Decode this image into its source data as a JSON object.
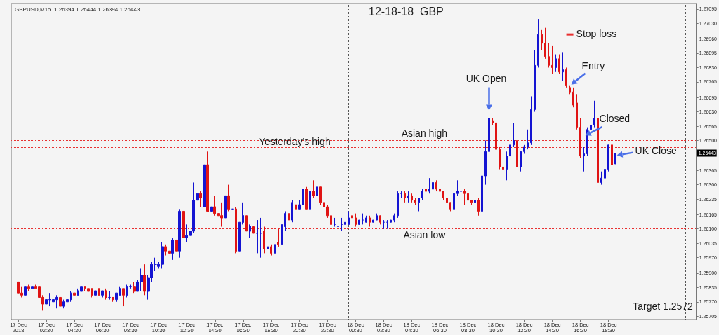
{
  "chart_data": {
    "type": "candlestick",
    "title": "12-18-18  GBP",
    "subtitle": "GBPUSD,M15  1.26394 1.26444 1.26394 1.26443",
    "colors": [
      "#e01414",
      "#e01414",
      "#1414d2",
      "#e01414",
      "#1414d2",
      "#e01414",
      "#e01414",
      "#e01414",
      "#1414d2",
      "#1414d2",
      "#1414d2",
      "#1414d2",
      "#e01414",
      "#1414d2",
      "#1414d2",
      "#1414d2",
      "#e01414",
      "#1414d2",
      "#1414d2",
      "#e01414",
      "#e01414",
      "#e01414",
      "#1414d2",
      "#e01414",
      "#1414d2",
      "#e01414",
      "#1414d2",
      "#e01414",
      "#1414d2",
      "#1414d2",
      "#e01414",
      "#1414d2",
      "#1414d2",
      "#e01414",
      "#1414d2",
      "#1414d2",
      "#e01414",
      "#1414d2",
      "#1414d2",
      "#1414d2",
      "#1414d2",
      "#1414d2",
      "#e01414",
      "#e01414",
      "#1414d2",
      "#e01414",
      "#1414d2",
      "#e01414",
      "#1414d2",
      "#1414d2",
      "#1414d2",
      "#1414d2",
      "#e01414",
      "#1414d2",
      "#e01414",
      "#1414d2",
      "#e01414",
      "#e01414",
      "#e01414",
      "#1414d2",
      "#e01414",
      "#1414d2",
      "#e01414",
      "#1414d2",
      "#1414d2",
      "#e01414",
      "#1414d2",
      "#e01414",
      "#1414d2",
      "#1414d2",
      "#e01414",
      "#1414d2",
      "#e01414",
      "#1414d2",
      "#e01414",
      "#1414d2",
      "#1414d2",
      "#e01414",
      "#1414d2",
      "#e01414",
      "#1414d2",
      "#1414d2",
      "#e01414",
      "#1414d2",
      "#e01414",
      "#1414d2",
      "#e01414",
      "#e01414",
      "#e01414",
      "#e01414",
      "#1414d2",
      "#1414d2",
      "#1414d2",
      "#1414d2",
      "#1414d2",
      "#e01414",
      "#e01414",
      "#1414d2",
      "#1414d2",
      "#1414d2",
      "#e01414",
      "#1414d2",
      "#1414d2",
      "#e01414",
      "#1414d2",
      "#1414d2",
      "#1414d2",
      "#1414d2",
      "#1414d2",
      "#1414d2",
      "#e01414",
      "#1414d2",
      "#e01414",
      "#e01414",
      "#1414d2",
      "#1414d2",
      "#e01414",
      "#1414d2",
      "#1414d2",
      "#e01414",
      "#e01414",
      "#e01414",
      "#e01414",
      "#e01414",
      "#1414d2",
      "#1414d2",
      "#1414d2",
      "#e01414",
      "#e01414",
      "#e01414",
      "#1414d2",
      "#e01414",
      "#1414d2",
      "#1414d2",
      "#1414d2",
      "#e01414",
      "#e01414",
      "#e01414",
      "#e01414",
      "#1414d2",
      "#1414d2",
      "#1414d2",
      "#e01414",
      "#1414d2",
      "#1414d2",
      "#1414d2",
      "#1414d2",
      "#1414d2",
      "#1414d2",
      "#e01414",
      "#e01414",
      "#e01414",
      "#e01414",
      "#1414d2",
      "#e01414",
      "#1414d2",
      "#e01414",
      "#e01414",
      "#e01414",
      "#e01414",
      "#e01414",
      "#1414d2",
      "#1414d2",
      "#1414d2",
      "#1414d2",
      "#e01414",
      "#1414d2",
      "#1414d2",
      "#1414d2",
      "#e01414",
      "#1414d2"
    ],
    "x": [
      "2018-12-17T00:30",
      "2018-12-17T00:45",
      "2018-12-17T01:00",
      "2018-12-17T01:15",
      "2018-12-17T01:30",
      "2018-12-17T01:45",
      "2018-12-17T02:00",
      "2018-12-17T02:15",
      "2018-12-17T02:30",
      "2018-12-17T02:45",
      "2018-12-17T03:00",
      "2018-12-17T03:15",
      "2018-12-17T03:30",
      "2018-12-17T03:45",
      "2018-12-17T04:00",
      "2018-12-17T04:15",
      "2018-12-17T04:30",
      "2018-12-17T04:45",
      "2018-12-17T05:00",
      "2018-12-17T05:15",
      "2018-12-17T05:30",
      "2018-12-17T05:45",
      "2018-12-17T06:00",
      "2018-12-17T06:15",
      "2018-12-17T06:30",
      "2018-12-17T06:45",
      "2018-12-17T07:00",
      "2018-12-17T07:15",
      "2018-12-17T07:30",
      "2018-12-17T07:45",
      "2018-12-17T08:00",
      "2018-12-17T08:15",
      "2018-12-17T08:30",
      "2018-12-17T08:45",
      "2018-12-17T09:00",
      "2018-12-17T09:15",
      "2018-12-17T09:30",
      "2018-12-17T09:45",
      "2018-12-17T10:00",
      "2018-12-17T10:15",
      "2018-12-17T10:30",
      "2018-12-17T10:45",
      "2018-12-17T11:00",
      "2018-12-17T11:15",
      "2018-12-17T11:30",
      "2018-12-17T11:45",
      "2018-12-17T12:00",
      "2018-12-17T12:15",
      "2018-12-17T12:30",
      "2018-12-17T12:45",
      "2018-12-17T13:00",
      "2018-12-17T13:15",
      "2018-12-17T13:30",
      "2018-12-17T13:45",
      "2018-12-17T14:00",
      "2018-12-17T14:15",
      "2018-12-17T14:30",
      "2018-12-17T14:45",
      "2018-12-17T15:00",
      "2018-12-17T15:15",
      "2018-12-17T15:30",
      "2018-12-17T15:45",
      "2018-12-17T16:00",
      "2018-12-17T16:15",
      "2018-12-17T16:30",
      "2018-12-17T16:45",
      "2018-12-17T17:00",
      "2018-12-17T17:15",
      "2018-12-17T17:30",
      "2018-12-17T17:45",
      "2018-12-17T18:00",
      "2018-12-17T18:15",
      "2018-12-17T18:30",
      "2018-12-17T18:45",
      "2018-12-17T19:00",
      "2018-12-17T19:15",
      "2018-12-17T19:30",
      "2018-12-17T19:45",
      "2018-12-17T20:00",
      "2018-12-17T20:15",
      "2018-12-17T20:30",
      "2018-12-17T20:45",
      "2018-12-17T21:00",
      "2018-12-17T21:15",
      "2018-12-17T21:30",
      "2018-12-17T21:45",
      "2018-12-17T22:00",
      "2018-12-17T22:15",
      "2018-12-17T22:30",
      "2018-12-17T22:45",
      "2018-12-17T23:00",
      "2018-12-17T23:15",
      "2018-12-17T23:30",
      "2018-12-17T23:45",
      "2018-12-18T00:00",
      "2018-12-18T00:15",
      "2018-12-18T00:30",
      "2018-12-18T00:45",
      "2018-12-18T01:00",
      "2018-12-18T01:15",
      "2018-12-18T01:30",
      "2018-12-18T01:45",
      "2018-12-18T02:00",
      "2018-12-18T02:15",
      "2018-12-18T02:30",
      "2018-12-18T02:45",
      "2018-12-18T03:00",
      "2018-12-18T03:15",
      "2018-12-18T03:30",
      "2018-12-18T03:45",
      "2018-12-18T04:00",
      "2018-12-18T04:15",
      "2018-12-18T04:30",
      "2018-12-18T04:45",
      "2018-12-18T05:00",
      "2018-12-18T05:15",
      "2018-12-18T05:30",
      "2018-12-18T05:45",
      "2018-12-18T06:00",
      "2018-12-18T06:15",
      "2018-12-18T06:30",
      "2018-12-18T06:45",
      "2018-12-18T07:00",
      "2018-12-18T07:15",
      "2018-12-18T07:30",
      "2018-12-18T07:45",
      "2018-12-18T08:00",
      "2018-12-18T08:15",
      "2018-12-18T08:30",
      "2018-12-18T08:45",
      "2018-12-18T09:00",
      "2018-12-18T09:15",
      "2018-12-18T09:30",
      "2018-12-18T09:45",
      "2018-12-18T10:00",
      "2018-12-18T10:15",
      "2018-12-18T10:30",
      "2018-12-18T10:45",
      "2018-12-18T11:00",
      "2018-12-18T11:15",
      "2018-12-18T11:30",
      "2018-12-18T11:45",
      "2018-12-18T12:00",
      "2018-12-18T12:15",
      "2018-12-18T12:30",
      "2018-12-18T12:45",
      "2018-12-18T13:00",
      "2018-12-18T13:15",
      "2018-12-18T13:30",
      "2018-12-18T13:45",
      "2018-12-18T14:00",
      "2018-12-18T14:15",
      "2018-12-18T14:30",
      "2018-12-18T14:45",
      "2018-12-18T15:00",
      "2018-12-18T15:15",
      "2018-12-18T15:30",
      "2018-12-18T15:45",
      "2018-12-18T16:00",
      "2018-12-18T16:15",
      "2018-12-18T16:30",
      "2018-12-18T16:45",
      "2018-12-18T17:00",
      "2018-12-18T17:15",
      "2018-12-18T17:30",
      "2018-12-18T17:45",
      "2018-12-18T18:00",
      "2018-12-18T18:15",
      "2018-12-18T18:30",
      "2018-12-18T18:45",
      "2018-12-18T19:00"
    ],
    "ohlc": [
      [
        1.2586,
        1.2587,
        1.2579,
        1.2581
      ],
      [
        1.2581,
        1.2584,
        1.2579,
        1.258
      ],
      [
        1.258,
        1.2588,
        1.258,
        1.2584
      ],
      [
        1.2584,
        1.2585,
        1.2582,
        1.2583
      ],
      [
        1.2583,
        1.2585,
        1.2583,
        1.2584
      ],
      [
        1.2584,
        1.2585,
        1.2583,
        1.2583
      ],
      [
        1.2584,
        1.2585,
        1.2579,
        1.2579
      ],
      [
        1.2579,
        1.258,
        1.2573,
        1.2576
      ],
      [
        1.2576,
        1.2579,
        1.2575,
        1.2578
      ],
      [
        1.2578,
        1.2581,
        1.2575,
        1.2578
      ],
      [
        1.2577,
        1.2583,
        1.2575,
        1.2578
      ],
      [
        1.2578,
        1.258,
        1.2574,
        1.2579
      ],
      [
        1.2579,
        1.258,
        1.2574,
        1.2575
      ],
      [
        1.2575,
        1.2578,
        1.2574,
        1.2577
      ],
      [
        1.2577,
        1.2579,
        1.2576,
        1.2578
      ],
      [
        1.2578,
        1.2582,
        1.2577,
        1.2581
      ],
      [
        1.2581,
        1.2582,
        1.2579,
        1.258
      ],
      [
        1.258,
        1.2583,
        1.258,
        1.2582
      ],
      [
        1.2582,
        1.2585,
        1.2581,
        1.2584
      ],
      [
        1.2584,
        1.2584,
        1.2582,
        1.2583
      ],
      [
        1.2583,
        1.2584,
        1.2581,
        1.2582
      ],
      [
        1.2583,
        1.2583,
        1.2579,
        1.258
      ],
      [
        1.258,
        1.2583,
        1.2579,
        1.2582
      ],
      [
        1.2583,
        1.2583,
        1.258,
        1.258
      ],
      [
        1.258,
        1.2582,
        1.2579,
        1.2582
      ],
      [
        1.2582,
        1.2583,
        1.2578,
        1.2579
      ],
      [
        1.2579,
        1.2582,
        1.2578,
        1.2579
      ],
      [
        1.2579,
        1.2579,
        1.2577,
        1.2578
      ],
      [
        1.2578,
        1.2581,
        1.2577,
        1.2581
      ],
      [
        1.258,
        1.2584,
        1.258,
        1.2583
      ],
      [
        1.2583,
        1.2583,
        1.2575,
        1.258
      ],
      [
        1.258,
        1.2585,
        1.2579,
        1.2584
      ],
      [
        1.2584,
        1.2585,
        1.2583,
        1.2584
      ],
      [
        1.2584,
        1.2586,
        1.2581,
        1.2582
      ],
      [
        1.2582,
        1.2587,
        1.2582,
        1.2586
      ],
      [
        1.2586,
        1.2592,
        1.2582,
        1.2589
      ],
      [
        1.2589,
        1.2594,
        1.258,
        1.2582
      ],
      [
        1.2582,
        1.2589,
        1.2578,
        1.2588
      ],
      [
        1.2588,
        1.2595,
        1.2586,
        1.2594
      ],
      [
        1.2594,
        1.2597,
        1.2591,
        1.2594
      ],
      [
        1.2593,
        1.2595,
        1.2592,
        1.2594
      ],
      [
        1.2594,
        1.2604,
        1.2592,
        1.2602
      ],
      [
        1.2602,
        1.2603,
        1.2598,
        1.26
      ],
      [
        1.26,
        1.2602,
        1.2595,
        1.2599
      ],
      [
        1.2599,
        1.2606,
        1.2596,
        1.2605
      ],
      [
        1.2605,
        1.2609,
        1.2599,
        1.26
      ],
      [
        1.26,
        1.2619,
        1.2597,
        1.2618
      ],
      [
        1.2618,
        1.262,
        1.2605,
        1.2606
      ],
      [
        1.2606,
        1.2612,
        1.2604,
        1.2607
      ],
      [
        1.2607,
        1.2612,
        1.2606,
        1.2609
      ],
      [
        1.2609,
        1.2631,
        1.2608,
        1.2623
      ],
      [
        1.2623,
        1.2629,
        1.2621,
        1.2626
      ],
      [
        1.2626,
        1.2627,
        1.262,
        1.2624
      ],
      [
        1.262,
        1.2647,
        1.2619,
        1.2639
      ],
      [
        1.2639,
        1.2645,
        1.2618,
        1.2618
      ],
      [
        1.2618,
        1.2625,
        1.2604,
        1.262
      ],
      [
        1.262,
        1.2625,
        1.2616,
        1.2617
      ],
      [
        1.2617,
        1.2624,
        1.2613,
        1.2616
      ],
      [
        1.2616,
        1.2622,
        1.2611,
        1.2615
      ],
      [
        1.2615,
        1.2626,
        1.2614,
        1.2625
      ],
      [
        1.2625,
        1.263,
        1.2618,
        1.2619
      ],
      [
        1.2619,
        1.2621,
        1.2618,
        1.2619
      ],
      [
        1.2619,
        1.262,
        1.2599,
        1.26
      ],
      [
        1.26,
        1.2615,
        1.2595,
        1.2613
      ],
      [
        1.2613,
        1.2622,
        1.2612,
        1.2616
      ],
      [
        1.2616,
        1.2626,
        1.2592,
        1.2609
      ],
      [
        1.2609,
        1.2612,
        1.2606,
        1.2611
      ],
      [
        1.2611,
        1.2612,
        1.26,
        1.2608
      ],
      [
        1.2608,
        1.2614,
        1.2599,
        1.2608
      ],
      [
        1.2608,
        1.2615,
        1.2597,
        1.2608
      ],
      [
        1.2609,
        1.2611,
        1.2599,
        1.2601
      ],
      [
        1.2601,
        1.2613,
        1.26,
        1.2602
      ],
      [
        1.2602,
        1.2603,
        1.2598,
        1.2599
      ],
      [
        1.2599,
        1.2605,
        1.2591,
        1.2603
      ],
      [
        1.2604,
        1.261,
        1.2602,
        1.2603
      ],
      [
        1.2603,
        1.2612,
        1.26,
        1.2612
      ],
      [
        1.2611,
        1.2618,
        1.2609,
        1.2617
      ],
      [
        1.2617,
        1.2625,
        1.2611,
        1.2614
      ],
      [
        1.2614,
        1.2623,
        1.2613,
        1.2622
      ],
      [
        1.2621,
        1.2622,
        1.2619,
        1.2619
      ],
      [
        1.2619,
        1.2623,
        1.2619,
        1.2621
      ],
      [
        1.2621,
        1.2631,
        1.2619,
        1.2628
      ],
      [
        1.2628,
        1.2629,
        1.2619,
        1.2619
      ],
      [
        1.2619,
        1.2629,
        1.2619,
        1.2627
      ],
      [
        1.2627,
        1.2632,
        1.2624,
        1.2625
      ],
      [
        1.2625,
        1.2633,
        1.2624,
        1.2629
      ],
      [
        1.2629,
        1.2629,
        1.2621,
        1.2622
      ],
      [
        1.2622,
        1.2624,
        1.2619,
        1.262
      ],
      [
        1.262,
        1.2621,
        1.2615,
        1.2616
      ],
      [
        1.2616,
        1.2616,
        1.261,
        1.2612
      ],
      [
        1.2612,
        1.2615,
        1.2611,
        1.2612
      ],
      [
        1.2611,
        1.2615,
        1.261,
        1.2611
      ],
      [
        1.2612,
        1.2615,
        1.2609,
        1.2612
      ],
      [
        1.2612,
        1.2615,
        1.2611,
        1.2613
      ],
      [
        1.2612,
        1.2618,
        1.2612,
        1.2615
      ],
      [
        1.2616,
        1.2618,
        1.2614,
        1.2615
      ],
      [
        1.2615,
        1.2617,
        1.2611,
        1.2612
      ],
      [
        1.2612,
        1.2614,
        1.2612,
        1.2614
      ],
      [
        1.2614,
        1.2617,
        1.2612,
        1.2614
      ],
      [
        1.2613,
        1.2616,
        1.2613,
        1.2615
      ],
      [
        1.2615,
        1.2616,
        1.2611,
        1.2613
      ],
      [
        1.2613,
        1.2614,
        1.2613,
        1.2614
      ],
      [
        1.2614,
        1.2617,
        1.2614,
        1.2616
      ],
      [
        1.2616,
        1.2616,
        1.2612,
        1.2613
      ],
      [
        1.2613,
        1.2614,
        1.261,
        1.2613
      ],
      [
        1.2613,
        1.2614,
        1.261,
        1.2613
      ],
      [
        1.2613,
        1.2614,
        1.2613,
        1.2614
      ],
      [
        1.2614,
        1.2617,
        1.2613,
        1.2616
      ],
      [
        1.2616,
        1.2627,
        1.2615,
        1.2626
      ],
      [
        1.2626,
        1.2627,
        1.2624,
        1.2626
      ],
      [
        1.2626,
        1.2627,
        1.2622,
        1.2624
      ],
      [
        1.2624,
        1.2627,
        1.2622,
        1.2625
      ],
      [
        1.2625,
        1.2626,
        1.2622,
        1.2623
      ],
      [
        1.2623,
        1.2624,
        1.2621,
        1.2622
      ],
      [
        1.2622,
        1.2624,
        1.2618,
        1.2624
      ],
      [
        1.2624,
        1.2628,
        1.2623,
        1.2627
      ],
      [
        1.2628,
        1.2628,
        1.2627,
        1.2627
      ],
      [
        1.2627,
        1.2633,
        1.2626,
        1.2628
      ],
      [
        1.2628,
        1.2633,
        1.2628,
        1.2631
      ],
      [
        1.2631,
        1.2632,
        1.2627,
        1.2628
      ],
      [
        1.2628,
        1.2628,
        1.2624,
        1.2627
      ],
      [
        1.2627,
        1.2627,
        1.2623,
        1.2624
      ],
      [
        1.2624,
        1.2624,
        1.2621,
        1.2622
      ],
      [
        1.2622,
        1.2622,
        1.2618,
        1.2619
      ],
      [
        1.2619,
        1.2626,
        1.2619,
        1.2626
      ],
      [
        1.2626,
        1.2632,
        1.2625,
        1.2627
      ],
      [
        1.2627,
        1.2628,
        1.2625,
        1.2627
      ],
      [
        1.2627,
        1.2628,
        1.2621,
        1.2626
      ],
      [
        1.2626,
        1.2627,
        1.2622,
        1.2623
      ],
      [
        1.2623,
        1.2623,
        1.2621,
        1.2622
      ],
      [
        1.2622,
        1.2625,
        1.2621,
        1.2623
      ],
      [
        1.2623,
        1.2624,
        1.2616,
        1.2618
      ],
      [
        1.2618,
        1.2637,
        1.2617,
        1.2634
      ],
      [
        1.2634,
        1.265,
        1.263,
        1.2645
      ],
      [
        1.2645,
        1.2662,
        1.2644,
        1.266
      ],
      [
        1.2659,
        1.266,
        1.2657,
        1.2658
      ],
      [
        1.2658,
        1.2659,
        1.2645,
        1.2646
      ],
      [
        1.2646,
        1.2647,
        1.2637,
        1.2638
      ],
      [
        1.2638,
        1.2641,
        1.2632,
        1.2637
      ],
      [
        1.2637,
        1.2645,
        1.2632,
        1.2643
      ],
      [
        1.2643,
        1.2651,
        1.2642,
        1.2648
      ],
      [
        1.2648,
        1.2658,
        1.2647,
        1.265
      ],
      [
        1.265,
        1.2652,
        1.2637,
        1.2638
      ],
      [
        1.2638,
        1.2645,
        1.2636,
        1.2645
      ],
      [
        1.2645,
        1.2648,
        1.2644,
        1.2647
      ],
      [
        1.2647,
        1.2655,
        1.2646,
        1.2649
      ],
      [
        1.2649,
        1.267,
        1.2648,
        1.2664
      ],
      [
        1.2664,
        1.2691,
        1.2663,
        1.2684
      ],
      [
        1.2684,
        1.2705,
        1.2683,
        1.2698
      ],
      [
        1.2698,
        1.27,
        1.2691,
        1.2694
      ],
      [
        1.2694,
        1.2701,
        1.2687,
        1.2688
      ],
      [
        1.2688,
        1.2694,
        1.2683,
        1.2684
      ],
      [
        1.2684,
        1.2693,
        1.268,
        1.2683
      ],
      [
        1.2683,
        1.2689,
        1.2681,
        1.2687
      ],
      [
        1.2687,
        1.2689,
        1.268,
        1.2681
      ],
      [
        1.2681,
        1.269,
        1.2677,
        1.2682
      ],
      [
        1.2682,
        1.2683,
        1.2674,
        1.2675
      ],
      [
        1.2674,
        1.2675,
        1.2671,
        1.2672
      ],
      [
        1.2672,
        1.2674,
        1.2665,
        1.2666
      ],
      [
        1.2667,
        1.2671,
        1.2655,
        1.2656
      ],
      [
        1.2656,
        1.266,
        1.2642,
        1.2643
      ],
      [
        1.2643,
        1.2647,
        1.2636,
        1.2644
      ],
      [
        1.2644,
        1.2656,
        1.2643,
        1.2655
      ],
      [
        1.2655,
        1.2661,
        1.2654,
        1.2657
      ],
      [
        1.2657,
        1.2668,
        1.2656,
        1.266
      ],
      [
        1.266,
        1.2661,
        1.2626,
        1.2631
      ],
      [
        1.2631,
        1.2636,
        1.263,
        1.2633
      ],
      [
        1.2633,
        1.2638,
        1.2629,
        1.2637
      ],
      [
        1.2637,
        1.2648,
        1.2636,
        1.2648
      ],
      [
        1.2648,
        1.265,
        1.2638,
        1.2639
      ],
      [
        1.26394,
        1.26444,
        1.26394,
        1.26443
      ]
    ],
    "xlim": [
      "2018-12-17T00:00",
      "2018-12-19T00:45"
    ],
    "xticks": [
      {
        "value": "2018-12-17T00:30",
        "label": "17 Dec 2018"
      },
      {
        "value": "2018-12-17T02:30",
        "label": "17 Dec 02:30"
      },
      {
        "value": "2018-12-17T04:30",
        "label": "17 Dec 04:30"
      },
      {
        "value": "2018-12-17T06:30",
        "label": "17 Dec 06:30"
      },
      {
        "value": "2018-12-17T08:30",
        "label": "17 Dec 08:30"
      },
      {
        "value": "2018-12-17T10:30",
        "label": "17 Dec 10:30"
      },
      {
        "value": "2018-12-17T12:30",
        "label": "17 Dec 12:30"
      },
      {
        "value": "2018-12-17T14:30",
        "label": "17 Dec 14:30"
      },
      {
        "value": "2018-12-17T16:30",
        "label": "17 Dec 16:30"
      },
      {
        "value": "2018-12-17T18:30",
        "label": "17 Dec 18:30"
      },
      {
        "value": "2018-12-17T20:30",
        "label": "17 Dec 20:30"
      },
      {
        "value": "2018-12-17T22:30",
        "label": "17 Dec 22:30"
      },
      {
        "value": "2018-12-18T00:30",
        "label": "18 Dec 00:30"
      },
      {
        "value": "2018-12-18T02:30",
        "label": "18 Dec 02:30"
      },
      {
        "value": "2018-12-18T04:30",
        "label": "18 Dec 04:30"
      },
      {
        "value": "2018-12-18T06:30",
        "label": "18 Dec 06:30"
      },
      {
        "value": "2018-12-18T08:30",
        "label": "18 Dec 08:30"
      },
      {
        "value": "2018-12-18T10:30",
        "label": "18 Dec 10:30"
      },
      {
        "value": "2018-12-18T12:30",
        "label": "18 Dec 12:30"
      },
      {
        "value": "2018-12-18T14:30",
        "label": "18 Dec 14:30"
      },
      {
        "value": "2018-12-18T16:30",
        "label": "18 Dec 16:30"
      },
      {
        "value": "2018-12-18T18:30",
        "label": "18 Dec 18:30"
      }
    ],
    "ylim": [
      1.2569,
      1.2712
    ],
    "yticks": [
      1.27095,
      {
        "value": 1.2703,
        "label": "1.27030"
      },
      {
        "value": 1.2696,
        "label": "1.26960"
      },
      1.26895,
      {
        "value": 1.2683,
        "label": "1.26830"
      },
      1.26765,
      1.26695,
      {
        "value": 1.2663,
        "label": "1.26630"
      },
      1.26565,
      {
        "value": 1.265,
        "label": "1.26500"
      },
      1.26365,
      {
        "value": 1.263,
        "label": "1.26300"
      },
      1.26235,
      1.26165,
      {
        "value": 1.261,
        "label": "1.26100"
      },
      1.26035,
      {
        "value": 1.2597,
        "label": "1.25970"
      },
      {
        "value": 1.259,
        "label": "1.25900"
      },
      1.25835,
      {
        "value": 1.2577,
        "label": "1.25770"
      },
      1.25705
    ],
    "ref_lines": [
      {
        "axis": "y",
        "value": 1.2647,
        "label": "Yesterday's high",
        "color": "#e83030",
        "line_style": "dotted"
      },
      {
        "axis": "y",
        "value": 1.265,
        "label": "Asian high",
        "color": "#e83030",
        "line_style": "dotted"
      },
      {
        "axis": "y",
        "value": 1.261,
        "label": "Asian low",
        "color": "#e83030",
        "line_style": "dotted"
      },
      {
        "axis": "y",
        "value": 1.2572,
        "label": "Target  1.2572",
        "color": "#1010d8",
        "line_style": "solid"
      },
      {
        "axis": "y",
        "value": 1.26443,
        "label": "1.26443",
        "color": "#b0b0bc",
        "line_style": "solid"
      },
      {
        "axis": "x",
        "value": "2018-12-18T00:00",
        "color": "#555555",
        "line_style": "dotted"
      },
      {
        "axis": "x",
        "value": "2018-12-19T00:00",
        "color": "#555555",
        "line_style": "dotted"
      }
    ],
    "annotations": [
      {
        "text": "UK Open",
        "x": "2018-12-18T10:00",
        "y": 1.2663
      },
      {
        "text": "Stop loss",
        "x": "2018-12-18T15:45",
        "y": 1.2698
      },
      {
        "text": "Entry",
        "x": "2018-12-18T15:45",
        "y": 1.2675
      },
      {
        "text": "Closed",
        "x": "2018-12-18T16:45",
        "y": 1.2652
      },
      {
        "text": "UK Close",
        "x": "2018-12-18T19:00",
        "y": 1.2643
      }
    ],
    "grid": false
  }
}
